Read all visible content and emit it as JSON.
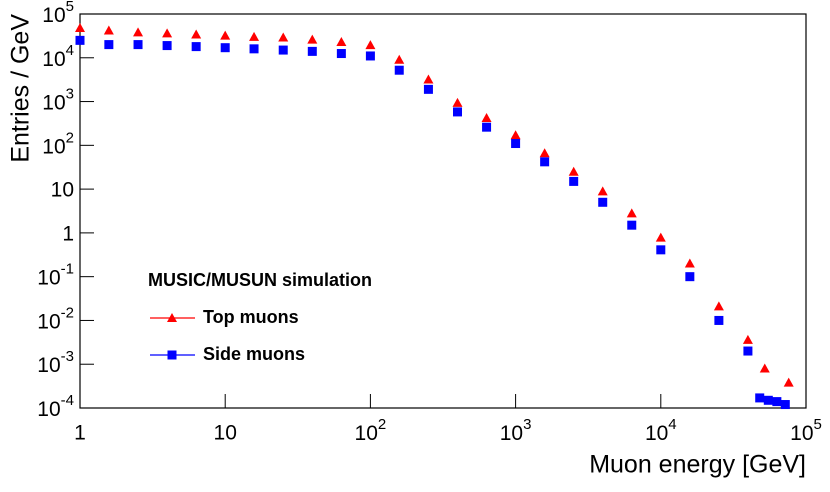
{
  "chart_data": {
    "type": "scatter",
    "xlabel": "Muon energy [GeV]",
    "ylabel": "Entries / GeV",
    "legend_title": "MUSIC/MUSUN simulation",
    "xscale": "log",
    "yscale": "log",
    "xlim": [
      1,
      100000
    ],
    "ylim": [
      0.0001,
      100000
    ],
    "xticks": [
      1,
      10,
      {
        "value": 100,
        "label": "10^2"
      },
      {
        "value": 1000,
        "label": "10^3"
      },
      {
        "value": 10000,
        "label": "10^4"
      },
      {
        "value": 100000,
        "label": "10^5"
      }
    ],
    "yticks": [
      {
        "value": 0.0001,
        "label": "10^-4"
      },
      {
        "value": 0.001,
        "label": "10^-3"
      },
      {
        "value": 0.01,
        "label": "10^-2"
      },
      {
        "value": 0.1,
        "label": "10^-1"
      },
      1,
      10,
      {
        "value": 100,
        "label": "10^2"
      },
      {
        "value": 1000,
        "label": "10^3"
      },
      {
        "value": 10000,
        "label": "10^4"
      },
      {
        "value": 100000,
        "label": "10^5"
      }
    ],
    "series": [
      {
        "name": "Top muons",
        "color": "#ff0000",
        "marker": "triangle",
        "x": [
          1,
          1.58,
          2.51,
          3.98,
          6.31,
          10,
          15.8,
          25.1,
          39.8,
          63.1,
          100,
          158,
          251,
          398,
          631,
          1000,
          1585,
          2512,
          3981,
          6310,
          10000,
          15850,
          25120,
          39810,
          52000,
          76000
        ],
        "values": [
          48000,
          42000,
          38000,
          36000,
          34000,
          32000,
          30000,
          29000,
          26000,
          23000,
          19500,
          9000,
          3200,
          930,
          420,
          170,
          66,
          25,
          8.9,
          2.8,
          0.78,
          0.2,
          0.021,
          0.0036,
          0.0008,
          0.00038
        ]
      },
      {
        "name": "Side muons",
        "color": "#0000ff",
        "marker": "square",
        "x": [
          1,
          1.58,
          2.51,
          3.98,
          6.31,
          10,
          15.8,
          25.1,
          39.8,
          63.1,
          100,
          158,
          251,
          398,
          631,
          1000,
          1585,
          2512,
          3981,
          6310,
          10000,
          15850,
          25120,
          39810,
          48000,
          55000,
          63000,
          72000
        ],
        "values": [
          25000,
          20000,
          20000,
          19000,
          18000,
          17000,
          16000,
          15000,
          14000,
          12500,
          11000,
          5200,
          1900,
          580,
          260,
          110,
          42,
          15,
          5,
          1.5,
          0.41,
          0.1,
          0.01,
          0.002,
          0.00017,
          0.00015,
          0.00014,
          0.00012
        ]
      }
    ]
  }
}
